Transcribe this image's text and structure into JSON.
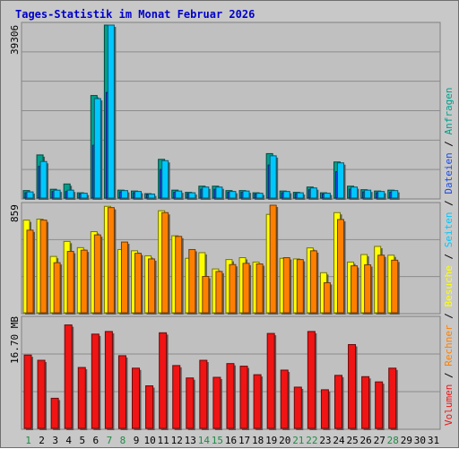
{
  "chart_data": {
    "type": "bar",
    "title": "Tages-Statistik im Monat Februar 2026",
    "categories": [
      "1",
      "2",
      "3",
      "4",
      "5",
      "6",
      "7",
      "8",
      "9",
      "10",
      "11",
      "12",
      "13",
      "14",
      "15",
      "16",
      "17",
      "18",
      "19",
      "20",
      "21",
      "22",
      "23",
      "24",
      "25",
      "26",
      "27",
      "28",
      "29",
      "30",
      "31"
    ],
    "weekend_days": [
      "1",
      "7",
      "8",
      "14",
      "15",
      "21",
      "22",
      "28"
    ],
    "grid": true,
    "panels": [
      {
        "id": "top",
        "ymax_label": "39306",
        "ylim": [
          0,
          39306
        ],
        "series": [
          {
            "name": "Anfragen",
            "color": "#00a08c",
            "values": [
              1700,
              9800,
              2000,
              3200,
              1200,
              23300,
              39306,
              1800,
              1600,
              1000,
              8800,
              1800,
              1300,
              2700,
              2700,
              1700,
              1700,
              1200,
              10100,
              1600,
              1300,
              2500,
              1200,
              8200,
              2700,
              1900,
              1600,
              1800,
              0,
              0,
              0
            ]
          },
          {
            "name": "Dateien",
            "color": "#1a4ce6",
            "values": [
              1200,
              7200,
              1500,
              1500,
              900,
              12000,
              24000,
              1400,
              1200,
              800,
              6500,
              1300,
              1000,
              2000,
              2000,
              1300,
              1300,
              900,
              7500,
              1200,
              1000,
              1900,
              900,
              6000,
              2000,
              1400,
              1200,
              1300,
              0,
              0,
              0
            ]
          },
          {
            "name": "Seiten",
            "color": "#00c8ff",
            "values": [
              1400,
              8300,
              1800,
              1800,
              1100,
              22600,
              39306,
              1700,
              1500,
              900,
              8500,
              1600,
              1200,
              2500,
              2500,
              1500,
              1600,
              1100,
              9600,
              1500,
              1200,
              2300,
              1100,
              8000,
              2500,
              1800,
              1500,
              1700,
              0,
              0,
              0
            ]
          }
        ]
      },
      {
        "id": "middle",
        "ymax_label": "859",
        "ylim": [
          0,
          859
        ],
        "series": [
          {
            "name": "Besuche",
            "color": "#ffff00",
            "values": [
              740,
              748,
              450,
              570,
              520,
              648,
              850,
              505,
              495,
              455,
              815,
              615,
              435,
              480,
              350,
              425,
              440,
              405,
              786,
              435,
              430,
              518,
              320,
              800,
              405,
              465,
              530,
              460,
              0,
              0,
              0
            ]
          },
          {
            "name": "Rechner",
            "color": "#ff8000",
            "values": [
              660,
              740,
              400,
              490,
              500,
              622,
              840,
              565,
              475,
              430,
              800,
              610,
              505,
              290,
              330,
              385,
              395,
              390,
              859,
              440,
              425,
              495,
              240,
              745,
              375,
              383,
              460,
              420,
              0,
              0,
              0
            ]
          }
        ]
      },
      {
        "id": "bottom",
        "ymax_label": "16.70 MB",
        "ylim": [
          0,
          16.7
        ],
        "series": [
          {
            "name": "Volumen",
            "color": "#f01414",
            "values": [
              11.2,
              10.4,
              4.6,
              15.8,
              9.3,
              14.4,
              14.8,
              11.1,
              9.2,
              6.5,
              14.6,
              9.6,
              7.7,
              10.4,
              7.8,
              9.9,
              9.5,
              8.2,
              14.5,
              8.9,
              6.3,
              14.8,
              5.9,
              8.1,
              12.8,
              7.9,
              7.1,
              9.2,
              0,
              0,
              0
            ]
          }
        ]
      }
    ],
    "legend_placement": "right-vertical"
  }
}
